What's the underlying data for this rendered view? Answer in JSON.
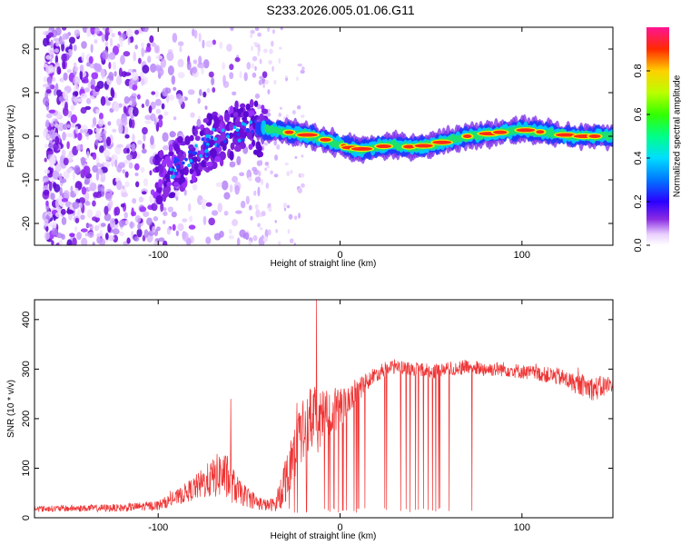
{
  "title": "S233.2026.005.01.06.G11",
  "chart_data": [
    {
      "type": "heatmap",
      "name": "spectrogram",
      "xlabel": "Height of straight line (km)",
      "ylabel": "Frequency (Hz)",
      "xlim": [
        -168,
        150
      ],
      "ylim": [
        -25,
        25
      ],
      "xticks": [
        -100,
        0,
        100
      ],
      "yticks": [
        -20,
        -10,
        0,
        10,
        20
      ],
      "ridge": {
        "x": [
          -100,
          -90,
          -80,
          -70,
          -60,
          -50,
          -40,
          -30,
          -20,
          -10,
          0,
          10,
          20,
          30,
          40,
          50,
          60,
          70,
          80,
          90,
          100,
          110,
          120,
          130,
          140,
          150
        ],
        "freq": [
          -10,
          -7,
          -4,
          -1,
          1,
          2,
          1.5,
          1,
          0.5,
          -0.5,
          -2,
          -3,
          -2.5,
          -2,
          -2.5,
          -2,
          -1,
          0,
          0.5,
          1,
          1.5,
          1,
          0.5,
          0,
          0,
          0
        ]
      },
      "noise_region": [
        -168,
        -45
      ],
      "colorbar": {
        "label": "Normalized spectral amplitude",
        "range": [
          0,
          1
        ],
        "ticks": [
          0.0,
          0.2,
          0.4,
          0.6,
          0.8
        ]
      }
    },
    {
      "type": "line",
      "name": "snr",
      "xlabel": "Height of straight line (km)",
      "ylabel": "SNR (10 * v/v)",
      "xlim": [
        -168,
        150
      ],
      "ylim": [
        0,
        440
      ],
      "xticks": [
        -100,
        0,
        100
      ],
      "yticks": [
        0,
        100,
        200,
        300,
        400
      ],
      "color": "#ee3333",
      "envelope": {
        "x": [
          -168,
          -120,
          -100,
          -90,
          -80,
          -70,
          -65,
          -60,
          -55,
          -50,
          -45,
          -40,
          -35,
          -30,
          -25,
          -20,
          -15,
          -12,
          -10,
          -5,
          0,
          5,
          10,
          15,
          20,
          25,
          30,
          40,
          50,
          60,
          70,
          80,
          90,
          100,
          110,
          120,
          130,
          140,
          150
        ],
        "mean": [
          18,
          20,
          25,
          40,
          60,
          80,
          90,
          70,
          50,
          40,
          30,
          25,
          28,
          80,
          140,
          180,
          200,
          190,
          200,
          215,
          220,
          240,
          260,
          275,
          290,
          300,
          305,
          300,
          295,
          300,
          305,
          300,
          300,
          295,
          290,
          285,
          270,
          260,
          270
        ],
        "spread": [
          6,
          8,
          10,
          15,
          25,
          40,
          50,
          40,
          25,
          20,
          15,
          12,
          15,
          50,
          60,
          60,
          70,
          80,
          60,
          50,
          40,
          30,
          25,
          20,
          15,
          15,
          15,
          15,
          15,
          15,
          15,
          15,
          15,
          15,
          15,
          18,
          20,
          25,
          20
        ]
      },
      "peaks": [
        {
          "x": -13,
          "y": 440
        },
        {
          "x": -60,
          "y": 240
        }
      ],
      "dropouts_range": [
        -35,
        75
      ]
    }
  ]
}
